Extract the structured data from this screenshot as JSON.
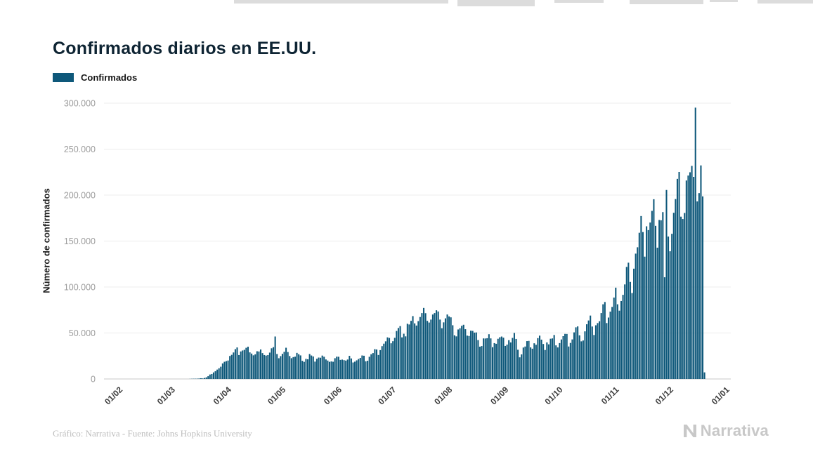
{
  "header": {
    "title": "Confirmados diarios en EE.UU."
  },
  "legend": {
    "items": [
      {
        "label": "Confirmados",
        "color": "#0e587a"
      }
    ]
  },
  "footer": {
    "credit": "Gráfico: Narrativa - Fuente: Johns Hopkins University",
    "brand": "Narrativa"
  },
  "chart_data": {
    "type": "bar",
    "title": "Confirmados diarios en EE.UU.",
    "xlabel": "",
    "ylabel": "Número de confirmados",
    "series_name": "Confirmados",
    "bar_color": "#0e587a",
    "grid": "horizontal",
    "legend_position": "top-left",
    "ylim": [
      0,
      300000
    ],
    "y_ticks": [
      0,
      50000,
      100000,
      150000,
      200000,
      250000,
      300000
    ],
    "y_tick_labels": [
      "0",
      "50.000",
      "100.000",
      "150.000",
      "200.000",
      "250.000",
      "300.000"
    ],
    "x_start_date": "2020-01-22",
    "x_end_date": "2021-01-01",
    "x_ticks": [
      {
        "label": "01/02",
        "date": "2020-02-01"
      },
      {
        "label": "01/03",
        "date": "2020-03-01"
      },
      {
        "label": "01/04",
        "date": "2020-04-01"
      },
      {
        "label": "01/05",
        "date": "2020-05-01"
      },
      {
        "label": "01/06",
        "date": "2020-06-01"
      },
      {
        "label": "01/07",
        "date": "2020-07-01"
      },
      {
        "label": "01/08",
        "date": "2020-08-01"
      },
      {
        "label": "01/09",
        "date": "2020-09-01"
      },
      {
        "label": "01/10",
        "date": "2020-10-01"
      },
      {
        "label": "01/11",
        "date": "2020-11-01"
      },
      {
        "label": "01/12",
        "date": "2020-12-01"
      },
      {
        "label": "01/01",
        "date": "2021-01-01"
      }
    ],
    "values": [
      1,
      0,
      1,
      3,
      0,
      0,
      0,
      0,
      2,
      0,
      1,
      0,
      0,
      0,
      0,
      1,
      0,
      0,
      1,
      0,
      1,
      1,
      1,
      0,
      0,
      0,
      0,
      0,
      0,
      0,
      1,
      0,
      0,
      1,
      0,
      6,
      1,
      1,
      4,
      3,
      20,
      14,
      22,
      34,
      74,
      105,
      95,
      121,
      200,
      271,
      287,
      351,
      511,
      777,
      602,
      1104,
      1766,
      2988,
      4835,
      5374,
      7123,
      8459,
      10189,
      11656,
      13320,
      16916,
      18691,
      19452,
      20065,
      24998,
      26246,
      28819,
      32425,
      34272,
      25995,
      29916,
      30980,
      31709,
      33901,
      35098,
      28917,
      27620,
      25712,
      26794,
      30148,
      29877,
      32076,
      28123,
      25995,
      25451,
      25966,
      28675,
      33355,
      34590,
      46194,
      27143,
      22541,
      24844,
      27327,
      29517,
      33955,
      29288,
      24958,
      22593,
      23792,
      24266,
      28369,
      26906,
      25621,
      19731,
      18601,
      21841,
      21411,
      27143,
      25508,
      24487,
      18873,
      21941,
      23285,
      23124,
      25434,
      24147,
      21236,
      20007,
      18611,
      19072,
      18721,
      22577,
      24266,
      24146,
      20724,
      21086,
      20461,
      19970,
      21140,
      25176,
      22317,
      17919,
      18822,
      20273,
      21697,
      22860,
      25540,
      25269,
      19243,
      19832,
      24119,
      26874,
      28161,
      32411,
      32060,
      26079,
      31402,
      35695,
      38386,
      40949,
      45255,
      44602,
      38800,
      41075,
      44734,
      52206,
      55442,
      57497,
      45255,
      49199,
      46329,
      60021,
      59268,
      63246,
      68382,
      60469,
      58114,
      62918,
      67417,
      71670,
      77255,
      71558,
      63201,
      61384,
      64589,
      70106,
      71695,
      74710,
      73400,
      64582,
      55187,
      61571,
      65935,
      70107,
      68032,
      67023,
      58429,
      47508,
      46321,
      53847,
      55148,
      57813,
      58947,
      54134,
      47136,
      46754,
      52509,
      52290,
      50443,
      50610,
      42303,
      35112,
      35803,
      44091,
      44023,
      44323,
      48693,
      44127,
      34567,
      38986,
      38253,
      43724,
      45341,
      46156,
      44906,
      35936,
      37374,
      42184,
      39735,
      44639,
      50084,
      43556,
      31791,
      23534,
      26722,
      34193,
      35286,
      41178,
      41406,
      34338,
      32919,
      38807,
      37190,
      44412,
      47131,
      42782,
      38037,
      31521,
      39745,
      37657,
      43772,
      44110,
      47825,
      36542,
      34315,
      39023,
      42979,
      46564,
      49049,
      48966,
      35306,
      39179,
      43023,
      50684,
      56181,
      57159,
      47462,
      40930,
      41859,
      51788,
      59494,
      63610,
      68965,
      57046,
      47840,
      58395,
      60789,
      62769,
      71687,
      81227,
      83718,
      60807,
      66798,
      73240,
      78358,
      88521,
      99321,
      81227,
      74279,
      84778,
      91530,
      102831,
      121888,
      126480,
      105531,
      93459,
      119968,
      136325,
      143231,
      159031,
      177224,
      159795,
      133045,
      166045,
      161934,
      170161,
      182832,
      195500,
      166555,
      142807,
      172935,
      172595,
      181490,
      110611,
      205557,
      154893,
      138903,
      157901,
      180753,
      195695,
      217664,
      225201,
      176556,
      173993,
      180546,
      215878,
      221267,
      224831,
      231775,
      219836,
      295121,
      193128,
      202170,
      232299,
      198618,
      7168
    ]
  }
}
